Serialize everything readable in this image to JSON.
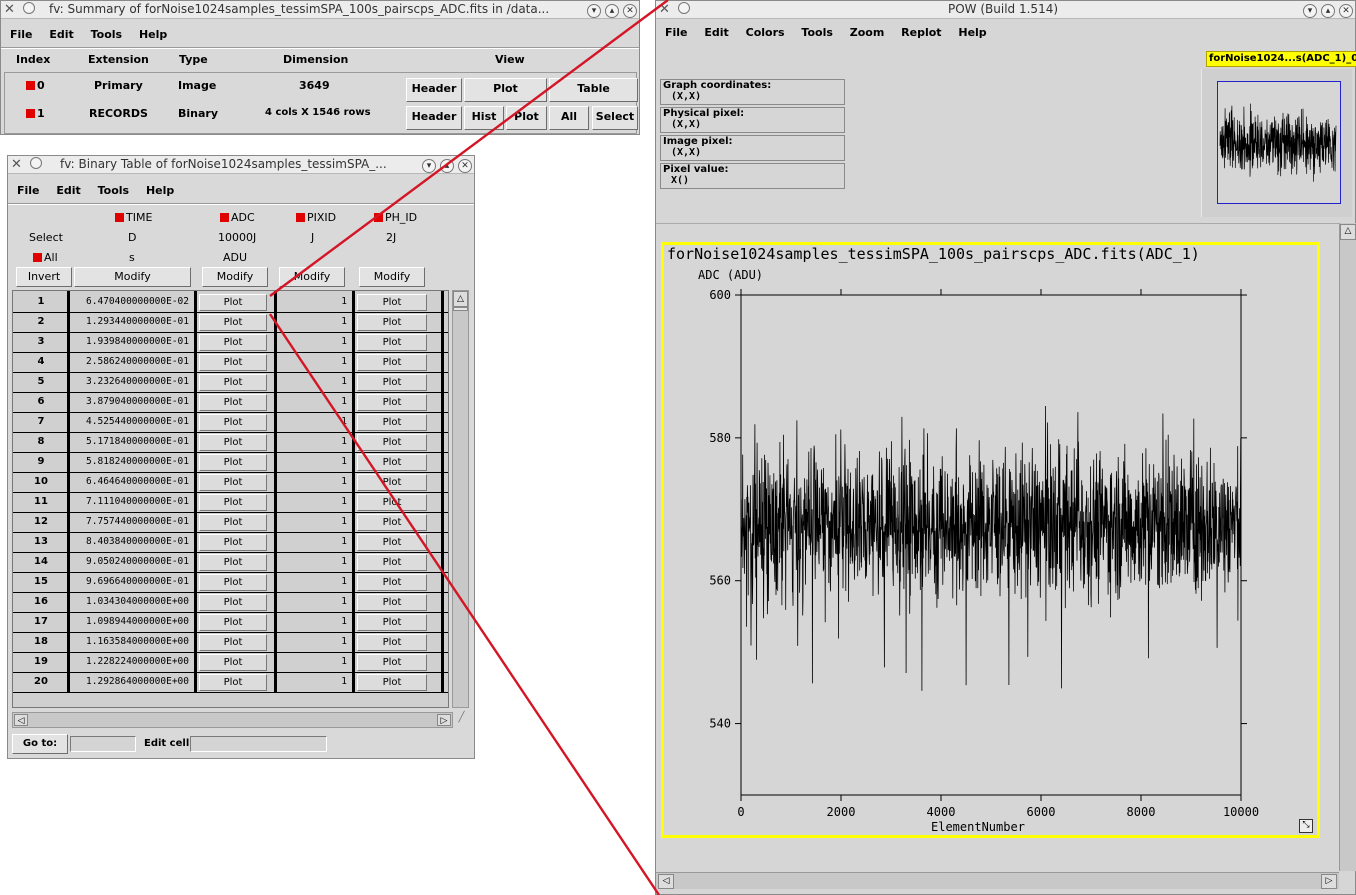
{
  "summary": {
    "title": "fv: Summary of forNoise1024samples_tessimSPA_100s_pairscps_ADC.fits in /data...",
    "menu": [
      "File",
      "Edit",
      "Tools",
      "Help"
    ],
    "headers": [
      "Index",
      "Extension",
      "Type",
      "Dimension",
      "View"
    ],
    "rows": [
      {
        "index": "0",
        "extension": "Primary",
        "type": "Image",
        "dimension": "3649"
      },
      {
        "index": "1",
        "extension": "RECORDS",
        "type": "Binary",
        "dimension": "4 cols X 1546 rows"
      }
    ],
    "row0_buttons": [
      "Header",
      "Plot",
      "Table"
    ],
    "row1_buttons": [
      "Header",
      "Hist",
      "Plot",
      "All",
      "Select"
    ]
  },
  "binary": {
    "title": "fv: Binary Table of forNoise1024samples_tessimSPA_...",
    "menu": [
      "File",
      "Edit",
      "Tools",
      "Help"
    ],
    "columns": [
      {
        "name": "TIME",
        "format": "D",
        "unit": "s"
      },
      {
        "name": "ADC",
        "format": "10000J",
        "unit": "ADU"
      },
      {
        "name": "PIXID",
        "format": "J",
        "unit": ""
      },
      {
        "name": "PH_ID",
        "format": "2J",
        "unit": ""
      }
    ],
    "select_label": "Select",
    "all_label": "All",
    "invert_label": "Invert",
    "modify_label": "Modify",
    "plot_label": "Plot",
    "goto_label": "Go to:",
    "editcell_label": "Edit cell:",
    "rows": [
      {
        "n": "1",
        "time": "6.470400000000E-02",
        "pixid": "1"
      },
      {
        "n": "2",
        "time": "1.293440000000E-01",
        "pixid": "1"
      },
      {
        "n": "3",
        "time": "1.939840000000E-01",
        "pixid": "1"
      },
      {
        "n": "4",
        "time": "2.586240000000E-01",
        "pixid": "1"
      },
      {
        "n": "5",
        "time": "3.232640000000E-01",
        "pixid": "1"
      },
      {
        "n": "6",
        "time": "3.879040000000E-01",
        "pixid": "1"
      },
      {
        "n": "7",
        "time": "4.525440000000E-01",
        "pixid": "1"
      },
      {
        "n": "8",
        "time": "5.171840000000E-01",
        "pixid": "1"
      },
      {
        "n": "9",
        "time": "5.818240000000E-01",
        "pixid": "1"
      },
      {
        "n": "10",
        "time": "6.464640000000E-01",
        "pixid": "1"
      },
      {
        "n": "11",
        "time": "7.111040000000E-01",
        "pixid": "1"
      },
      {
        "n": "12",
        "time": "7.757440000000E-01",
        "pixid": "1"
      },
      {
        "n": "13",
        "time": "8.403840000000E-01",
        "pixid": "1"
      },
      {
        "n": "14",
        "time": "9.050240000000E-01",
        "pixid": "1"
      },
      {
        "n": "15",
        "time": "9.696640000000E-01",
        "pixid": "1"
      },
      {
        "n": "16",
        "time": "1.034304000000E+00",
        "pixid": "1"
      },
      {
        "n": "17",
        "time": "1.098944000000E+00",
        "pixid": "1"
      },
      {
        "n": "18",
        "time": "1.163584000000E+00",
        "pixid": "1"
      },
      {
        "n": "19",
        "time": "1.228224000000E+00",
        "pixid": "1"
      },
      {
        "n": "20",
        "time": "1.292864000000E+00",
        "pixid": "1"
      }
    ]
  },
  "pow": {
    "title": "POW (Build 1.514)",
    "menu": [
      "File",
      "Edit",
      "Colors",
      "Tools",
      "Zoom",
      "Replot",
      "Help"
    ],
    "coords": [
      {
        "label": "Graph coordinates:",
        "value": "(X,X)"
      },
      {
        "label": "Physical pixel:",
        "value": "(X,X)"
      },
      {
        "label": "Image pixel:",
        "value": "(X,X)"
      },
      {
        "label": "Pixel value:",
        "value": "X()"
      }
    ],
    "thumb_label": "forNoise1024...s(ADC_1)_0",
    "highlight_color": "#ffff00"
  },
  "chart_data": {
    "type": "line",
    "title": "forNoise1024samples_tessimSPA_100s_pairscps_ADC.fits(ADC_1)",
    "xlabel": "ElementNumber",
    "ylabel": "ADC (ADU)",
    "xlim": [
      0,
      10000
    ],
    "ylim": [
      530,
      600
    ],
    "xticks": [
      0,
      2000,
      4000,
      6000,
      8000,
      10000
    ],
    "yticks": [
      540,
      560,
      580,
      600
    ],
    "n_points": 10000,
    "approx_mean": 568,
    "approx_min": 536,
    "approx_max": 597,
    "grid": false,
    "line_color": "#000000"
  }
}
